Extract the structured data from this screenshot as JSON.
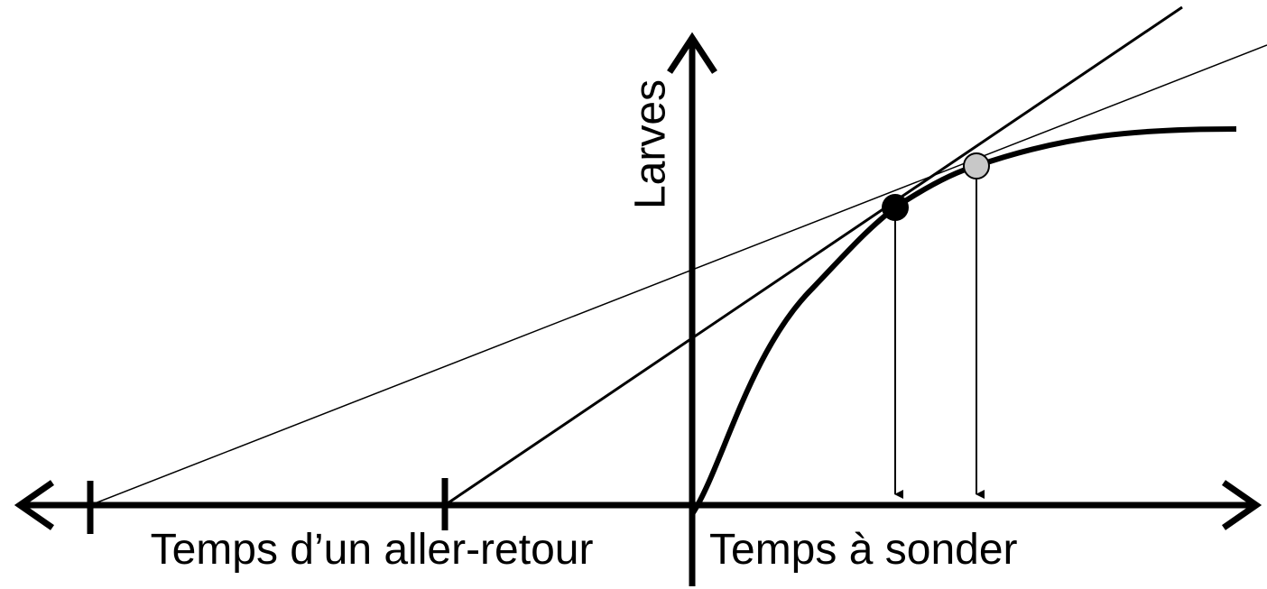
{
  "axes": {
    "y_label": "Larves",
    "x_label_left": "Temps d’un aller-retour",
    "x_label_right": "Temps à sonder"
  }
}
